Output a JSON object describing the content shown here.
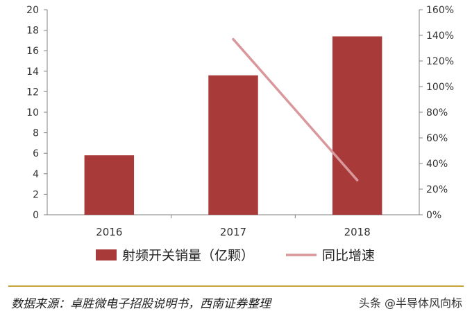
{
  "chart_data": {
    "type": "bar",
    "categories": [
      "2016",
      "2017",
      "2018"
    ],
    "series": [
      {
        "name": "射频开关销量（亿颗）",
        "kind": "bar",
        "axis": "left",
        "color": "#a83a3a",
        "values": [
          5.8,
          13.6,
          17.4
        ]
      },
      {
        "name": "同比增速",
        "kind": "line",
        "axis": "right",
        "color": "#d9989b",
        "values": [
          null,
          137,
          27
        ]
      }
    ],
    "y_left": {
      "min": 0,
      "max": 20,
      "step": 2,
      "ticks": [
        "0",
        "2",
        "4",
        "6",
        "8",
        "10",
        "12",
        "14",
        "16",
        "18",
        "20"
      ]
    },
    "y_right": {
      "min": 0,
      "max": 160,
      "step": 20,
      "ticks": [
        "0%",
        "20%",
        "40%",
        "60%",
        "80%",
        "100%",
        "120%",
        "140%",
        "160%"
      ]
    },
    "grid": false,
    "legend_position": "bottom"
  },
  "source": "数据来源：卓胜微电子招股说明书，西南证券整理",
  "watermark": "头条 @半导体风向标"
}
